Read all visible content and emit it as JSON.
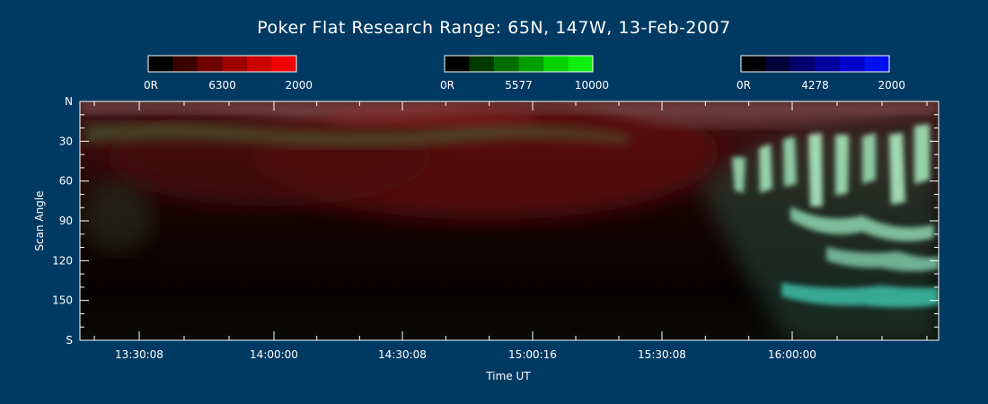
{
  "chart_data": {
    "type": "heatmap",
    "title": "Poker Flat Research Range: 65N, 147W, 13-Feb-2007",
    "xlabel": "Time UT",
    "ylabel": "Scan Angle",
    "x_ticks": [
      "13:30:08",
      "14:00:00",
      "14:30:08",
      "15:00:16",
      "15:30:08",
      "16:00:00"
    ],
    "y_ticks": [
      "N",
      "30",
      "60",
      "90",
      "120",
      "150",
      "S"
    ],
    "y_tick_values": [
      0,
      30,
      60,
      90,
      120,
      150,
      180
    ],
    "ylim": [
      0,
      180
    ],
    "color_bars": [
      {
        "wavelength": "6300",
        "min_label": "0R",
        "max_label": "2000",
        "colors": [
          "#000000",
          "#3a0000",
          "#6e0000",
          "#9e0000",
          "#cc0000",
          "#f00000"
        ]
      },
      {
        "wavelength": "5577",
        "min_label": "0R",
        "max_label": "10000",
        "colors": [
          "#000000",
          "#003a00",
          "#006e00",
          "#009e00",
          "#00d200",
          "#10f010"
        ]
      },
      {
        "wavelength": "4278",
        "min_label": "0R",
        "max_label": "2000",
        "colors": [
          "#000000",
          "#00003a",
          "#00006e",
          "#00009e",
          "#0000cc",
          "#0010f0"
        ]
      }
    ]
  }
}
